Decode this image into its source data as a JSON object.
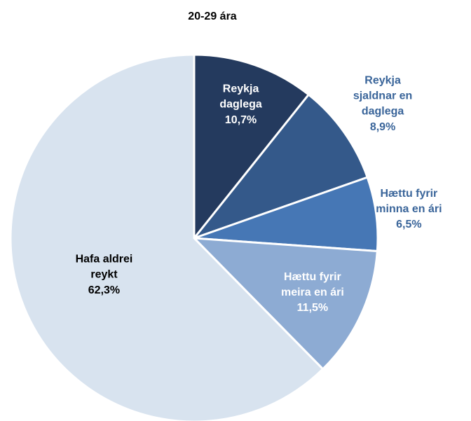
{
  "chart_data": {
    "type": "pie",
    "title": "20-29 ára",
    "categories": [
      "Reykja daglega",
      "Reykja sjaldnar en daglega",
      "Hættu fyrir minna en ári",
      "Hættu fyrir meira en ári",
      "Hafa aldrei reykt"
    ],
    "values": [
      10.7,
      8.9,
      6.5,
      11.5,
      62.3
    ],
    "value_labels": [
      "10,7%",
      "8,9%",
      "6,5%",
      "11,5%",
      "62,3%"
    ],
    "colors": [
      "#243a5e",
      "#34598a",
      "#4677b5",
      "#8dabd3",
      "#d8e3ef"
    ]
  }
}
